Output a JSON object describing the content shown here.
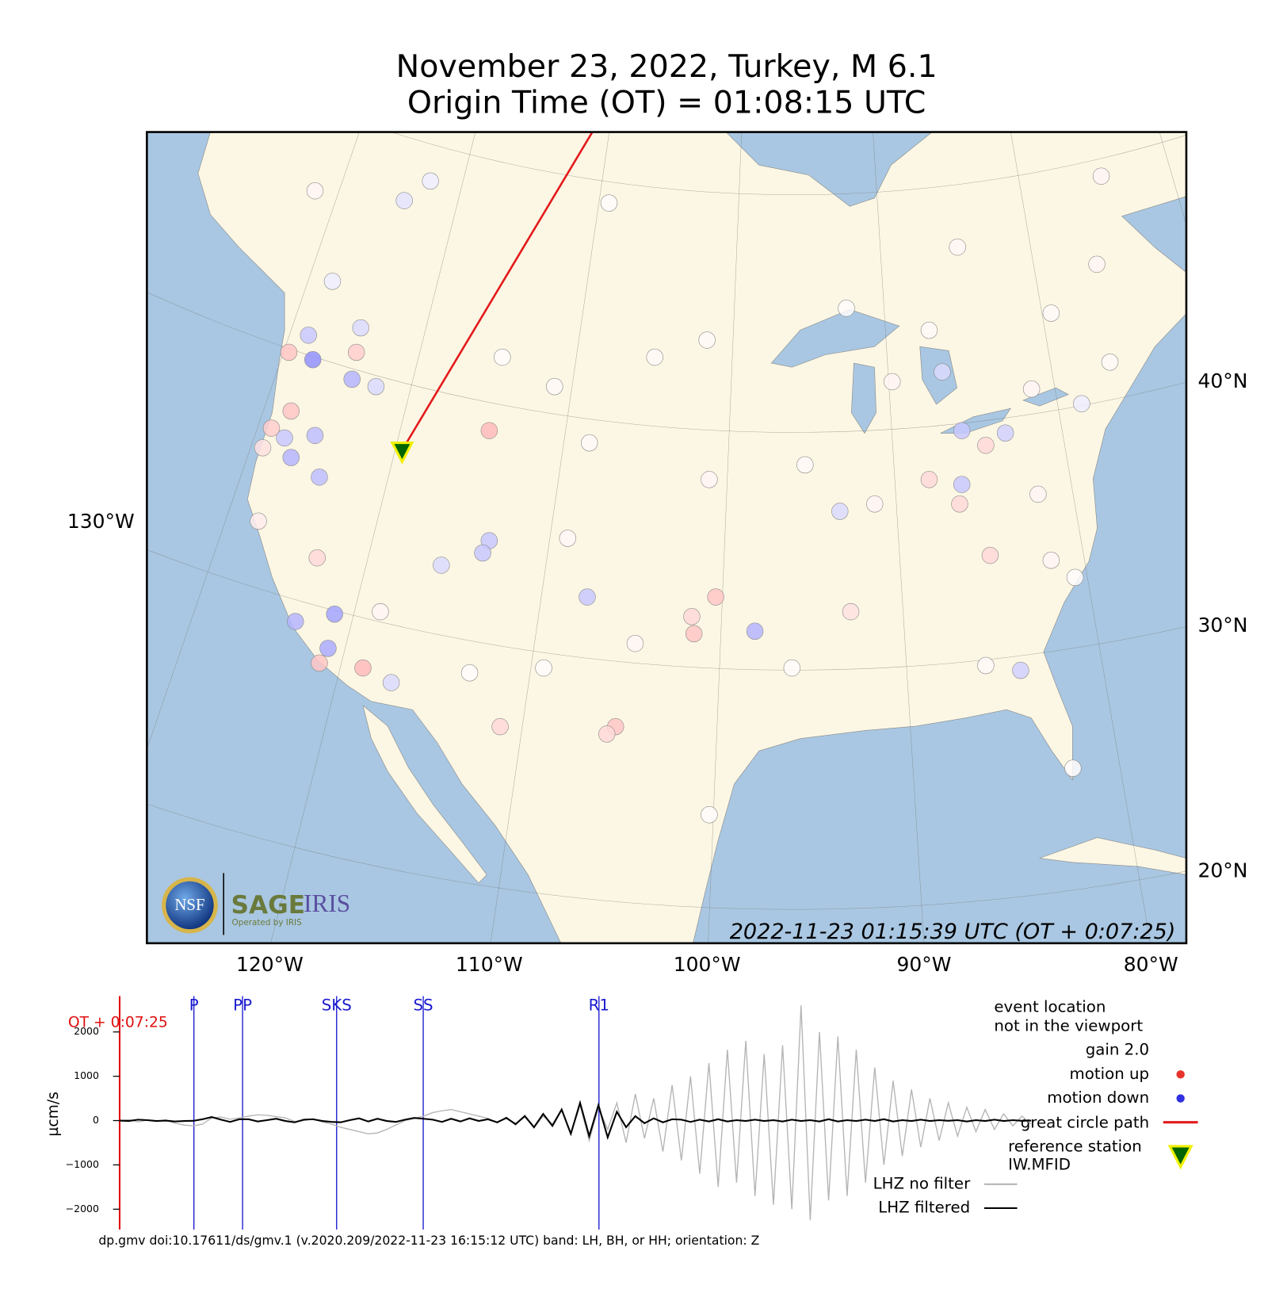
{
  "header": {
    "title": "November 23, 2022, Turkey, M 6.1",
    "subtitle": "Origin Time (OT) = 01:08:15 UTC"
  },
  "map": {
    "bottom_labels": [
      "120°W",
      "110°W",
      "100°W",
      "90°W",
      "80°W"
    ],
    "left_labels": [
      "130°W"
    ],
    "right_labels": [
      "40°N",
      "30°N",
      "20°N"
    ],
    "timestamp": "2022-11-23 01:15:39 UTC (OT + 0:07:25)",
    "logo": {
      "nsf": "NSF",
      "sage": "SAGE",
      "iris": "IRIS",
      "operator": "Operated by IRIS"
    },
    "great_circle_color": "#e31a1c",
    "reference_station": {
      "lon": -114.0,
      "lat": 37.2
    },
    "stations": [
      {
        "lon": -118.1,
        "lat": 40.9,
        "motion": -0.6
      },
      {
        "lon": -118.3,
        "lat": 41.9,
        "motion": -0.3
      },
      {
        "lon": -119.2,
        "lat": 41.2,
        "motion": 0.3
      },
      {
        "lon": -116.3,
        "lat": 40.1,
        "motion": -0.4
      },
      {
        "lon": -116.1,
        "lat": 41.2,
        "motion": 0.25
      },
      {
        "lon": -115.2,
        "lat": 39.8,
        "motion": -0.2
      },
      {
        "lon": -119.1,
        "lat": 38.8,
        "motion": 0.3
      },
      {
        "lon": -120.0,
        "lat": 38.1,
        "motion": 0.25
      },
      {
        "lon": -119.4,
        "lat": 37.7,
        "motion": -0.3
      },
      {
        "lon": -118.0,
        "lat": 37.8,
        "motion": -0.35
      },
      {
        "lon": -119.1,
        "lat": 36.9,
        "motion": -0.4
      },
      {
        "lon": -117.8,
        "lat": 36.1,
        "motion": -0.35
      },
      {
        "lon": -120.4,
        "lat": 37.3,
        "motion": 0.15
      },
      {
        "lon": -117.1,
        "lat": 30.5,
        "motion": -0.5
      },
      {
        "lon": -118.9,
        "lat": 30.2,
        "motion": -0.4
      },
      {
        "lon": -117.4,
        "lat": 29.1,
        "motion": -0.45
      },
      {
        "lon": -117.8,
        "lat": 28.5,
        "motion": 0.3
      },
      {
        "lon": -115.8,
        "lat": 28.3,
        "motion": 0.35
      },
      {
        "lon": -114.5,
        "lat": 27.7,
        "motion": -0.2
      },
      {
        "lon": -110.0,
        "lat": 38.0,
        "motion": 0.35
      },
      {
        "lon": -110.0,
        "lat": 33.5,
        "motion": -0.3
      },
      {
        "lon": -110.3,
        "lat": 33.0,
        "motion": -0.3
      },
      {
        "lon": -112.2,
        "lat": 32.5,
        "motion": -0.2
      },
      {
        "lon": -105.5,
        "lat": 31.2,
        "motion": -0.3
      },
      {
        "lon": -99.6,
        "lat": 31.2,
        "motion": 0.3
      },
      {
        "lon": -100.7,
        "lat": 30.4,
        "motion": 0.2
      },
      {
        "lon": -100.6,
        "lat": 29.7,
        "motion": 0.3
      },
      {
        "lon": -97.8,
        "lat": 29.8,
        "motion": -0.4
      },
      {
        "lon": -104.2,
        "lat": 25.9,
        "motion": 0.3
      },
      {
        "lon": -109.5,
        "lat": 25.9,
        "motion": 0.2
      },
      {
        "lon": -88.3,
        "lat": 38.0,
        "motion": -0.3
      },
      {
        "lon": -87.2,
        "lat": 37.4,
        "motion": 0.2
      },
      {
        "lon": -89.8,
        "lat": 36.0,
        "motion": 0.2
      },
      {
        "lon": -88.3,
        "lat": 35.8,
        "motion": -0.3
      },
      {
        "lon": -88.4,
        "lat": 35.0,
        "motion": 0.2
      },
      {
        "lon": -87.0,
        "lat": 32.9,
        "motion": 0.2
      },
      {
        "lon": -93.9,
        "lat": 34.7,
        "motion": -0.2
      },
      {
        "lon": -93.4,
        "lat": 30.6,
        "motion": 0.15
      },
      {
        "lon": -85.6,
        "lat": 28.2,
        "motion": -0.25
      },
      {
        "lon": -89.2,
        "lat": 40.4,
        "motion": -0.2
      },
      {
        "lon": -86.3,
        "lat": 37.9,
        "motion": -0.25
      },
      {
        "lon": -113.9,
        "lat": 47.4,
        "motion": -0.15
      },
      {
        "lon": -112.7,
        "lat": 48.2,
        "motion": -0.1
      },
      {
        "lon": -118.0,
        "lat": 47.8,
        "motion": 0.05
      },
      {
        "lon": -104.5,
        "lat": 47.3,
        "motion": 0.02
      },
      {
        "lon": -81.9,
        "lat": 48.4,
        "motion": 0.05
      },
      {
        "lon": -107.0,
        "lat": 39.8,
        "motion": 0.03
      },
      {
        "lon": -109.4,
        "lat": 41.0,
        "motion": 0.02
      },
      {
        "lon": -102.4,
        "lat": 41.0,
        "motion": 0.03
      },
      {
        "lon": -89.8,
        "lat": 42.1,
        "motion": 0.03
      },
      {
        "lon": -93.6,
        "lat": 43.0,
        "motion": 0.02
      },
      {
        "lon": -100.0,
        "lat": 41.7,
        "motion": 0.03
      },
      {
        "lon": -91.5,
        "lat": 40.0,
        "motion": 0.05
      },
      {
        "lon": -85.1,
        "lat": 39.7,
        "motion": 0.05
      },
      {
        "lon": -82.8,
        "lat": 39.1,
        "motion": -0.1
      },
      {
        "lon": -84.8,
        "lat": 35.4,
        "motion": 0.05
      },
      {
        "lon": -84.2,
        "lat": 32.7,
        "motion": 0.05
      },
      {
        "lon": -87.2,
        "lat": 28.4,
        "motion": 0.03
      },
      {
        "lon": -96.1,
        "lat": 28.3,
        "motion": 0.02
      },
      {
        "lon": -103.3,
        "lat": 29.3,
        "motion": 0.04
      },
      {
        "lon": -107.5,
        "lat": 28.3,
        "motion": 0.02
      },
      {
        "lon": -110.9,
        "lat": 28.1,
        "motion": 0.02
      },
      {
        "lon": -106.4,
        "lat": 33.6,
        "motion": 0.04
      },
      {
        "lon": -99.9,
        "lat": 36.0,
        "motion": 0.05
      },
      {
        "lon": -95.5,
        "lat": 36.6,
        "motion": 0.03
      },
      {
        "lon": -105.4,
        "lat": 37.5,
        "motion": 0.03
      },
      {
        "lon": -88.5,
        "lat": 45.5,
        "motion": 0.04
      },
      {
        "lon": -82.1,
        "lat": 44.8,
        "motion": 0.05
      },
      {
        "lon": -84.2,
        "lat": 42.8,
        "motion": 0.03
      },
      {
        "lon": -83.1,
        "lat": 32.0,
        "motion": 0.02
      },
      {
        "lon": -83.2,
        "lat": 24.2,
        "motion": 0.02
      },
      {
        "lon": -99.9,
        "lat": 22.3,
        "motion": 0.02
      },
      {
        "lon": -104.6,
        "lat": 25.6,
        "motion": 0.2
      },
      {
        "lon": -115.9,
        "lat": 42.2,
        "motion": -0.2
      },
      {
        "lon": -117.2,
        "lat": 44.1,
        "motion": -0.1
      },
      {
        "lon": -120.6,
        "lat": 34.3,
        "motion": 0.1
      },
      {
        "lon": -117.9,
        "lat": 32.8,
        "motion": 0.2
      },
      {
        "lon": -115.0,
        "lat": 30.6,
        "motion": 0.05
      },
      {
        "lon": -92.3,
        "lat": 35.0,
        "motion": 0.05
      },
      {
        "lon": -81.5,
        "lat": 40.8,
        "motion": 0.03
      }
    ]
  },
  "seismogram": {
    "offset_label": "OT + 0:07:25",
    "y_label": "µcm/s",
    "ylim": [
      -2460,
      2810
    ],
    "yticks": [
      2000,
      1000,
      0,
      {
        "value": -1000,
        "label": "−1000"
      },
      {
        "value": -2000,
        "label": "−2000"
      }
    ],
    "phases": [
      "P",
      "PP",
      "SKS",
      "SS",
      "R1"
    ],
    "series": [
      {
        "name": "LHZ no filter",
        "color": "#b4b4b4",
        "values": [
          0,
          20,
          -30,
          10,
          -20,
          15,
          -60,
          -100,
          -120,
          -80,
          60,
          80,
          30,
          60,
          100,
          130,
          120,
          90,
          60,
          -20,
          0,
          40,
          -30,
          -80,
          -150,
          -200,
          -250,
          -300,
          -280,
          -200,
          -100,
          0,
          50,
          100,
          180,
          220,
          250,
          200,
          150,
          100,
          50,
          -50,
          80,
          -100,
          120,
          -150,
          100,
          -80,
          250,
          -300,
          350,
          -450,
          300,
          -200,
          400,
          -500,
          600,
          -400,
          500,
          -700,
          800,
          -900,
          1000,
          -1200,
          1300,
          -1500,
          1600,
          -1400,
          1800,
          -1700,
          1500,
          -1900,
          1700,
          -2000,
          2600,
          -2250,
          2000,
          -1800,
          1900,
          -1700,
          1600,
          -1400,
          1200,
          -1000,
          900,
          -800,
          700,
          -600,
          500,
          -450,
          400,
          -350,
          300,
          -250,
          250,
          -200,
          150,
          -120,
          100,
          -80
        ]
      },
      {
        "name": "LHZ filtered",
        "color": "#000000",
        "values": [
          0,
          -10,
          20,
          10,
          -10,
          0,
          -20,
          -10,
          -5,
          30,
          80,
          20,
          -30,
          30,
          30,
          -20,
          10,
          40,
          -10,
          -40,
          20,
          30,
          -10,
          -30,
          -40,
          10,
          50,
          -20,
          40,
          -10,
          -30,
          20,
          60,
          40,
          20,
          -30,
          40,
          -20,
          50,
          -10,
          30,
          -40,
          60,
          -80,
          100,
          -150,
          150,
          -120,
          250,
          -300,
          400,
          -350,
          350,
          -380,
          200,
          -150,
          100,
          -60,
          50,
          -40,
          30,
          20,
          -30,
          20,
          -20,
          30,
          -20,
          10,
          -10,
          20,
          -10,
          10,
          -20,
          20,
          -10,
          10,
          -20,
          30,
          -20,
          10,
          -10,
          20,
          -10,
          30,
          -20,
          10,
          -10,
          20,
          -10,
          10,
          -5,
          10,
          -20,
          10,
          -10,
          20,
          -10,
          10,
          -5,
          0
        ]
      }
    ]
  },
  "legend": {
    "event_note": [
      "event location",
      "not in the viewport"
    ],
    "gain": "gain  2.0",
    "motion_up": "motion up",
    "motion_down": "motion down",
    "great_circle": "great circle path",
    "reference": [
      "reference station",
      "IW.MFID"
    ]
  },
  "footer": "dp.gmv doi:10.17611/ds/gmv.1 (v.2020.209/2022-11-23 16:15:12 UTC) band: LH, BH, or HH; orientation: Z"
}
